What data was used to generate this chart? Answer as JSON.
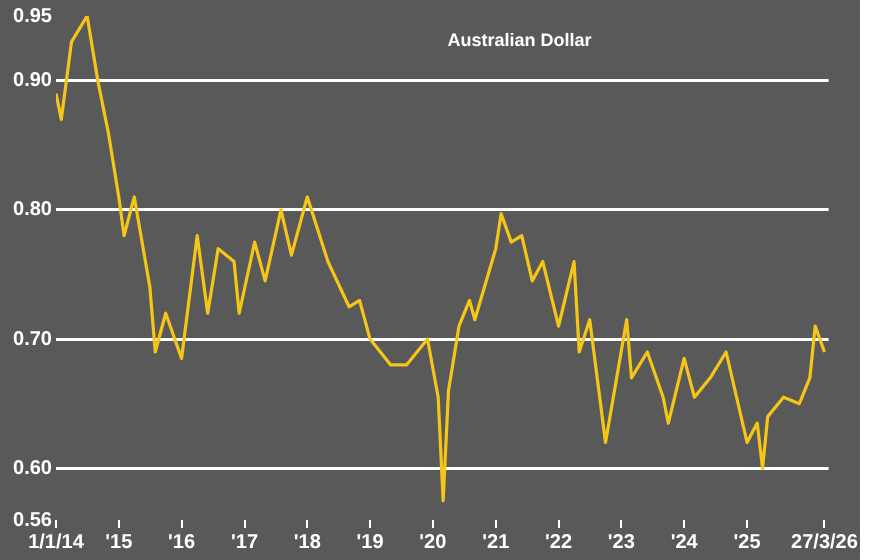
{
  "chart_data": {
    "type": "line",
    "title": "Australian Dollar",
    "x": [
      "2014-01-01",
      "2014-02",
      "2014-04",
      "2014-07",
      "2014-09",
      "2014-11",
      "2015-01",
      "2015-02",
      "2015-04",
      "2015-07",
      "2015-08",
      "2015-10",
      "2016-01",
      "2016-04",
      "2016-06",
      "2016-08",
      "2016-11",
      "2016-12",
      "2017-03",
      "2017-05",
      "2017-08",
      "2017-10",
      "2018-01",
      "2018-05",
      "2018-09",
      "2018-11",
      "2019-01",
      "2019-05",
      "2019-08",
      "2019-12",
      "2020-02",
      "2020-03",
      "2020-04",
      "2020-06",
      "2020-08",
      "2020-09",
      "2021-01",
      "2021-02",
      "2021-04",
      "2021-06",
      "2021-08",
      "2021-10",
      "2022-01",
      "2022-04",
      "2022-05",
      "2022-07",
      "2022-10",
      "2023-02",
      "2023-03",
      "2023-06",
      "2023-09",
      "2023-10",
      "2024-01",
      "2024-03",
      "2024-06",
      "2024-09",
      "2025-01",
      "2025-03",
      "2025-04",
      "2025-05",
      "2025-08",
      "2025-11",
      "2026-01",
      "2026-02",
      "2026-03-27"
    ],
    "series": [
      {
        "color": "#f5c518",
        "values": [
          0.89,
          0.87,
          0.93,
          0.95,
          0.9,
          0.86,
          0.81,
          0.78,
          0.81,
          0.74,
          0.69,
          0.72,
          0.685,
          0.78,
          0.72,
          0.77,
          0.76,
          0.72,
          0.775,
          0.745,
          0.8,
          0.765,
          0.81,
          0.76,
          0.725,
          0.73,
          0.7,
          0.68,
          0.68,
          0.7,
          0.655,
          0.575,
          0.66,
          0.71,
          0.73,
          0.715,
          0.77,
          0.797,
          0.775,
          0.78,
          0.745,
          0.76,
          0.71,
          0.76,
          0.69,
          0.715,
          0.62,
          0.715,
          0.67,
          0.69,
          0.655,
          0.635,
          0.685,
          0.655,
          0.67,
          0.69,
          0.62,
          0.635,
          0.6,
          0.64,
          0.655,
          0.65,
          0.67,
          0.71,
          0.69
        ]
      }
    ],
    "xlim": [
      "2014-01-01",
      "2026-04-20"
    ],
    "xticks": [
      {
        "value": "2014-01-01",
        "label": "1/1/14"
      },
      {
        "value": "2015-01-01",
        "label": "'15"
      },
      {
        "value": "2016-01-01",
        "label": "'16"
      },
      {
        "value": "2017-01-01",
        "label": "'17"
      },
      {
        "value": "2018-01-01",
        "label": "'18"
      },
      {
        "value": "2019-01-01",
        "label": "'19"
      },
      {
        "value": "2020-01-01",
        "label": "'20"
      },
      {
        "value": "2021-01-01",
        "label": "'21"
      },
      {
        "value": "2022-01-01",
        "label": "'22"
      },
      {
        "value": "2023-01-01",
        "label": "'23"
      },
      {
        "value": "2024-01-01",
        "label": "'24"
      },
      {
        "value": "2025-01-01",
        "label": "'25"
      },
      {
        "value": "2026-03-27",
        "label": "27/3/26"
      }
    ],
    "ylim": [
      0.56,
      0.95
    ],
    "yticks": [
      {
        "value": 0.56,
        "label": "0.56"
      },
      {
        "value": 0.6,
        "label": "0.60"
      },
      {
        "value": 0.7,
        "label": "0.70"
      },
      {
        "value": 0.8,
        "label": "0.80"
      },
      {
        "value": 0.9,
        "label": "0.90"
      },
      {
        "value": 0.95,
        "label": "0.95"
      }
    ],
    "grid": "y",
    "legend": false,
    "marker": "none",
    "line_style": "solid"
  }
}
